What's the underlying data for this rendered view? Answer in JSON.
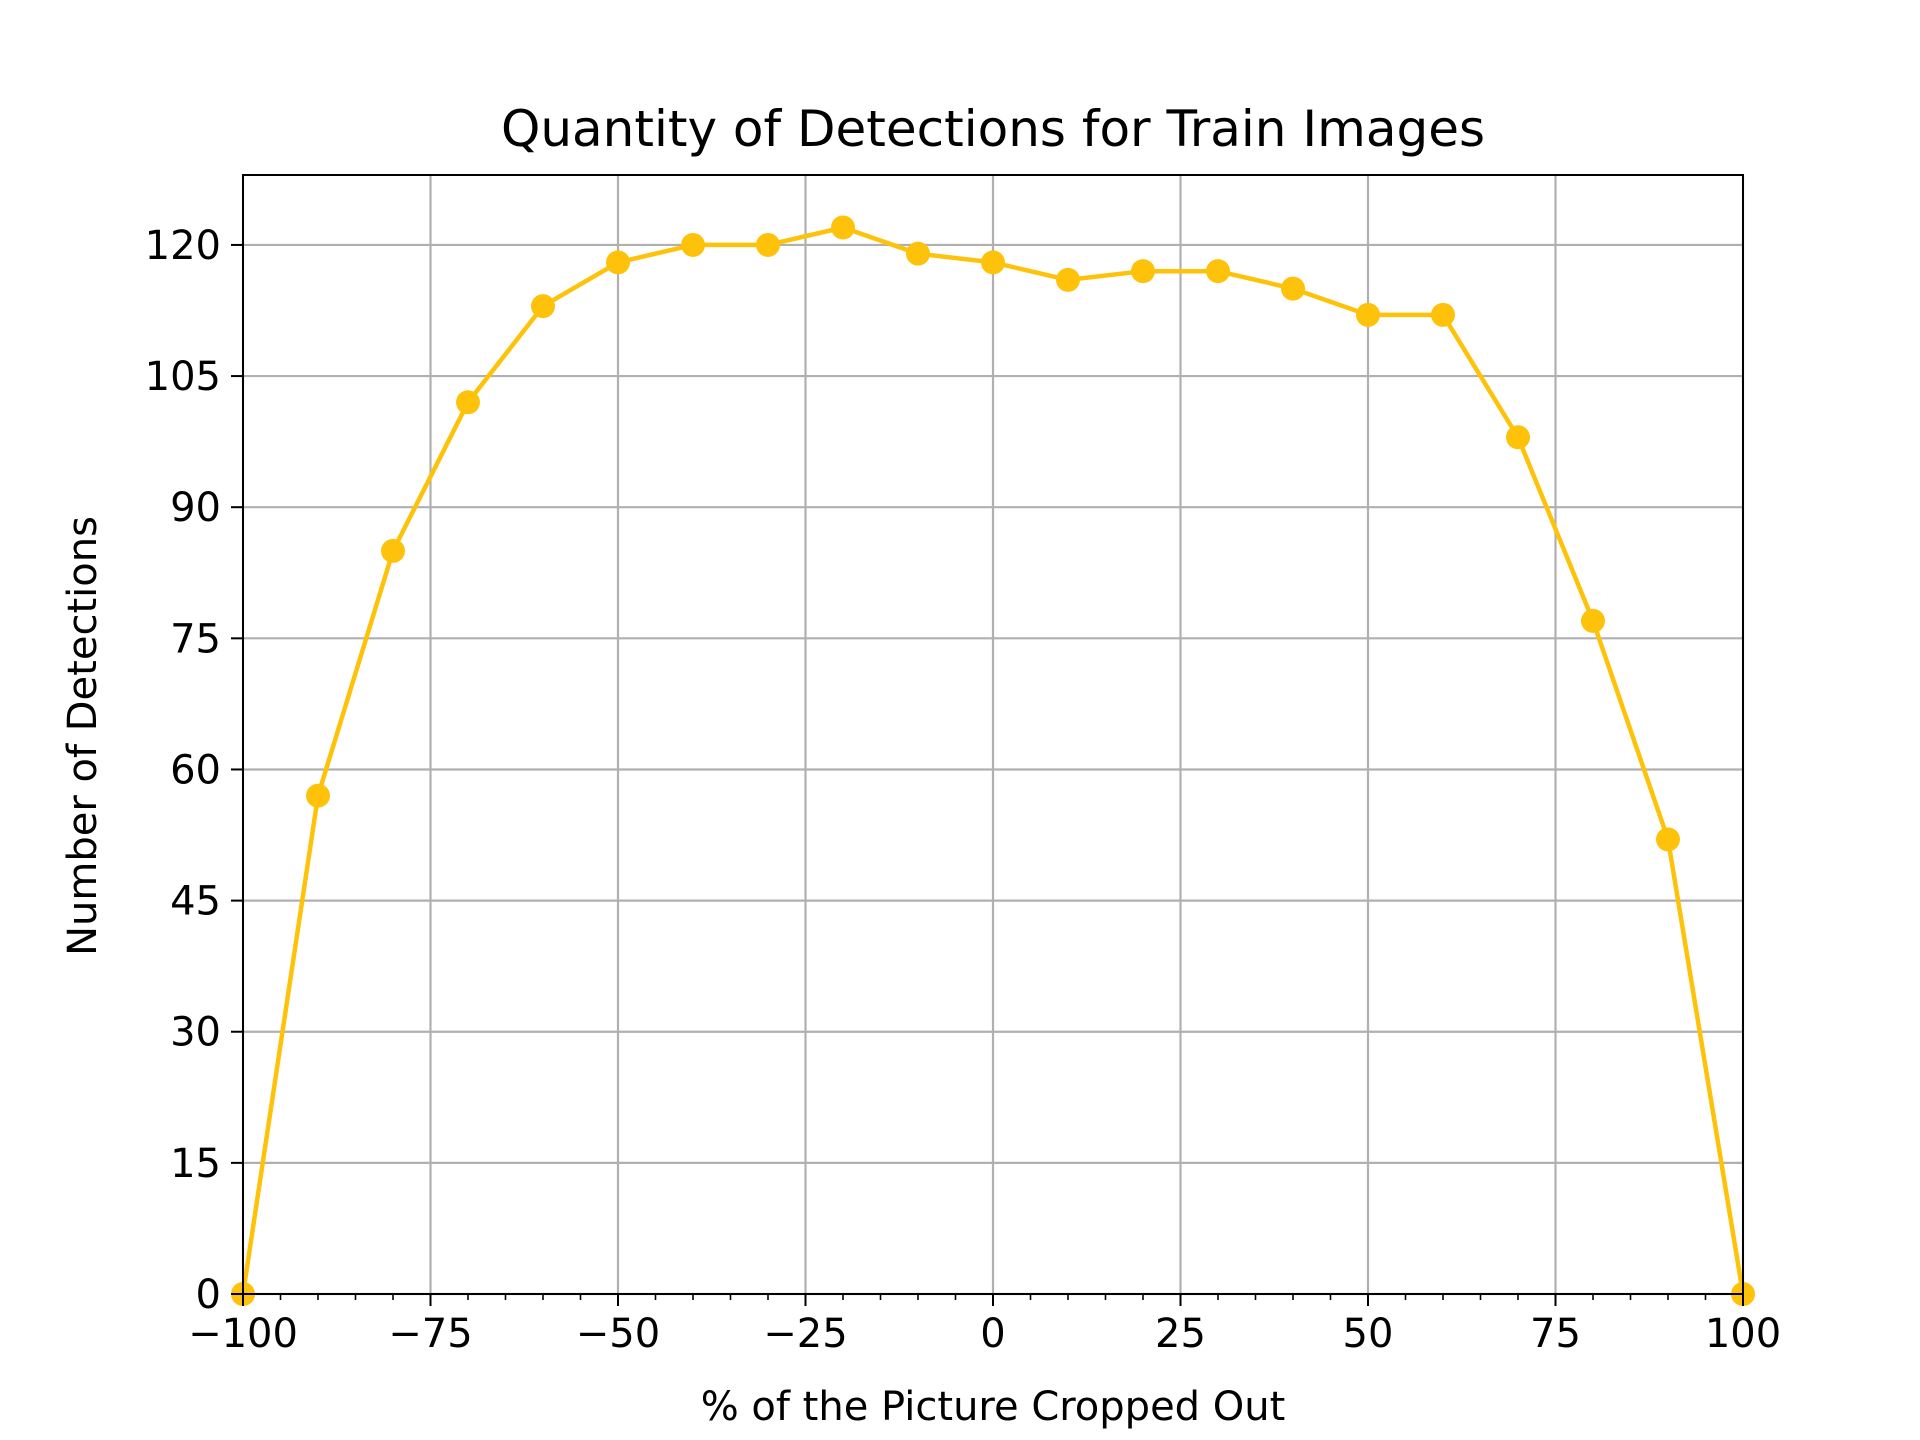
{
  "chart_data": {
    "type": "line",
    "title": "Quantity of Detections for Train Images",
    "xlabel": "% of the Picture Cropped Out",
    "ylabel": "Number of Detections",
    "xlim": [
      -100,
      100
    ],
    "ylim": [
      0,
      128
    ],
    "grid": true,
    "legend": "none",
    "x_ticks": [
      -100,
      -75,
      -50,
      -25,
      0,
      25,
      50,
      75,
      100
    ],
    "x_tick_labels": [
      "−100",
      "−75",
      "−50",
      "−25",
      "0",
      "25",
      "50",
      "75",
      "100"
    ],
    "y_ticks": [
      0,
      15,
      30,
      45,
      60,
      75,
      90,
      105,
      120
    ],
    "y_tick_labels": [
      "0",
      "15",
      "30",
      "45",
      "60",
      "75",
      "90",
      "105",
      "120"
    ],
    "series": [
      {
        "color": "#FFC20A",
        "marker": "circle",
        "x": [
          -100,
          -90,
          -80,
          -70,
          -60,
          -50,
          -40,
          -30,
          -20,
          -10,
          0,
          10,
          20,
          30,
          40,
          50,
          60,
          70,
          80,
          90,
          100
        ],
        "y": [
          0,
          57,
          85,
          102,
          113,
          118,
          120,
          120,
          122,
          119,
          118,
          116,
          117,
          117,
          115,
          112,
          112,
          98,
          77,
          52,
          0
        ]
      }
    ]
  }
}
